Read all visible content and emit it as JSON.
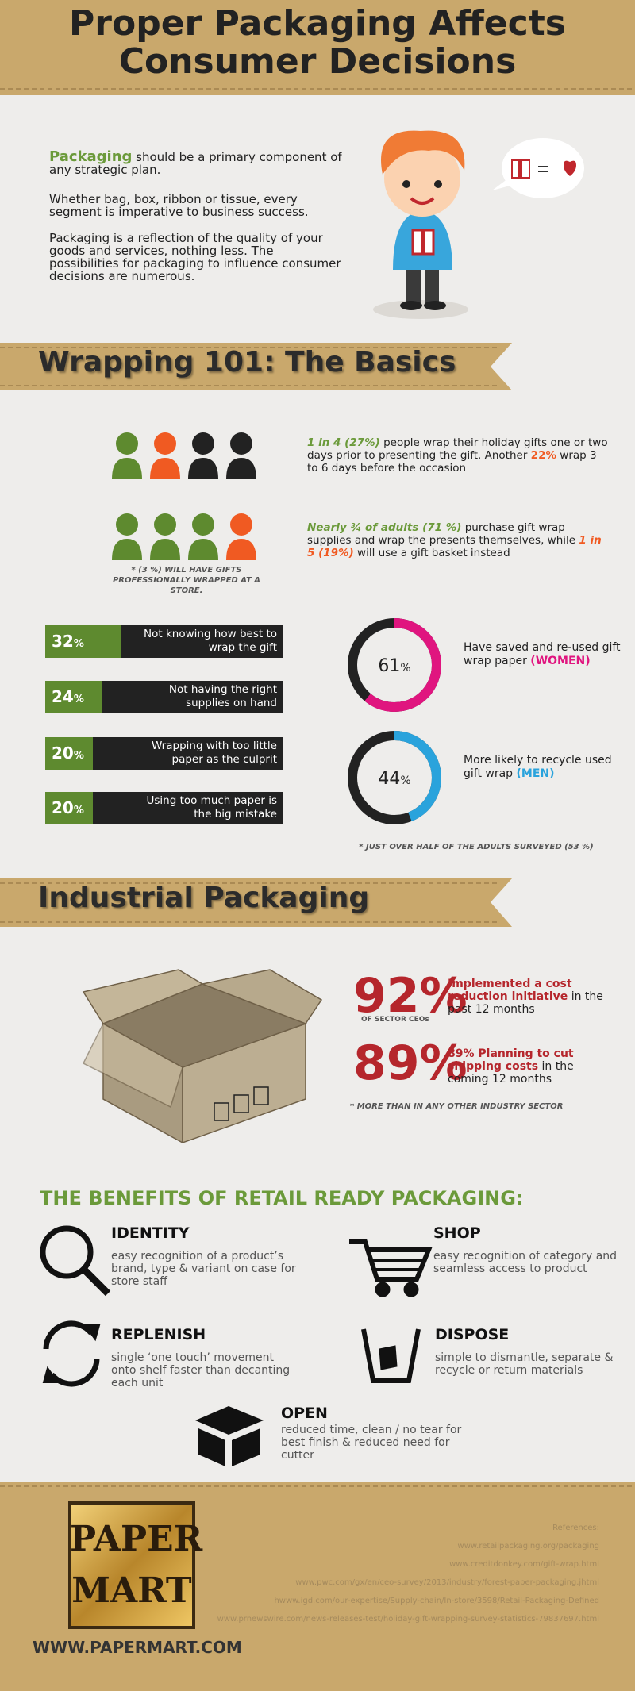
{
  "header": {
    "title": "Proper Packaging Affects Consumer Decisions"
  },
  "intro": {
    "p1": [
      "Packaging",
      " should be a primary component of any strategic plan."
    ],
    "p2": "Whether bag, box, ribbon or tissue, every segment is imperative to business success.",
    "p3": "Packaging is a reflection of the quality of your goods and services, nothing less. The possibilities for packaging to influence consumer decisions are numerous."
  },
  "wrapping": {
    "title": "Wrapping 101: The Basics",
    "stat1": [
      "1 in 4 (27%)",
      " people wrap their holiday gifts one or two days prior to presenting the gift. Another ",
      "22%",
      " wrap 3 to 6 days before the occasion"
    ],
    "stat2": [
      "Nearly ¾ of adults (71 %)",
      " purchase gift wrap supplies and wrap the presents themselves, while ",
      "1 in 5 (19%)",
      " will use a gift basket instead"
    ],
    "footnote1": "* (3 %) WILL HAVE GIFTS PROFESSIONALLY WRAPPED AT A STORE.",
    "bars": [
      {
        "value": 32,
        "unit": "%",
        "label": "Not knowing how best to wrap the gift"
      },
      {
        "value": 24,
        "unit": "%",
        "label": "Not having the right supplies on hand"
      },
      {
        "value": 20,
        "unit": "%",
        "label": "Wrapping with too little paper as the culprit"
      },
      {
        "value": 20,
        "unit": "%",
        "label": "Using too much paper is the big mistake"
      }
    ],
    "donuts": [
      {
        "value": 61,
        "unit": "%",
        "color": "#e0157f",
        "text": "Have saved and re-used gift wrap paper ",
        "highlight": "(WOMEN)"
      },
      {
        "value": 44,
        "unit": "%",
        "color": "#2aa3dc",
        "text": "More likely to recycle used gift wrap ",
        "highlight": "(MEN)"
      }
    ],
    "footnote2": "* JUST OVER HALF OF THE ADULTS SURVEYED (53 %)"
  },
  "industrial": {
    "title": "Industrial Packaging",
    "stats": [
      {
        "value": "92%",
        "caption": "OF SECTOR CEOs",
        "highlight": "Implemented a cost reduction initiative",
        "text": " in the past 12 months"
      },
      {
        "value": "89%",
        "highlight": "89% Planning to cut shipping costs",
        "text": " in the coming 12 months"
      }
    ],
    "footnote": "* MORE THAN IN ANY OTHER INDUSTRY SECTOR"
  },
  "benefits": {
    "title": "THE BENEFITS OF RETAIL READY PACKAGING:",
    "items": [
      {
        "title": "IDENTITY",
        "text": "easy recognition of a product’s brand, type & variant on case for store staff"
      },
      {
        "title": "SHOP",
        "text": "easy recognition of category and seamless access to product"
      },
      {
        "title": "REPLENISH",
        "text": "single ‘one touch’ movement onto shelf faster than decanting each unit"
      },
      {
        "title": "DISPOSE",
        "text": "simple to dismantle, separate & recycle or return materials"
      },
      {
        "title": "OPEN",
        "text": "reduced time, clean / no tear for best finish & reduced need for cutter"
      }
    ]
  },
  "footer": {
    "logo": [
      "PAPER",
      "MART"
    ],
    "url": "WWW.PAPERMART.COM",
    "references_title": "References:",
    "references": [
      "www.retailpackaging.org/packaging",
      "www.creditdonkey.com/gift-wrap.html",
      "www.pwc.com/gx/en/ceo-survey/2013/industry/forest-paper-packaging.jhtml",
      "hwww.igd.com/our-expertise/Supply-chain/In-store/3598/Retail-Packaging-Defined",
      "www.prnewswire.com/news-releases-test/holiday-gift-wrapping-survey-statistics-79837697.html"
    ]
  }
}
